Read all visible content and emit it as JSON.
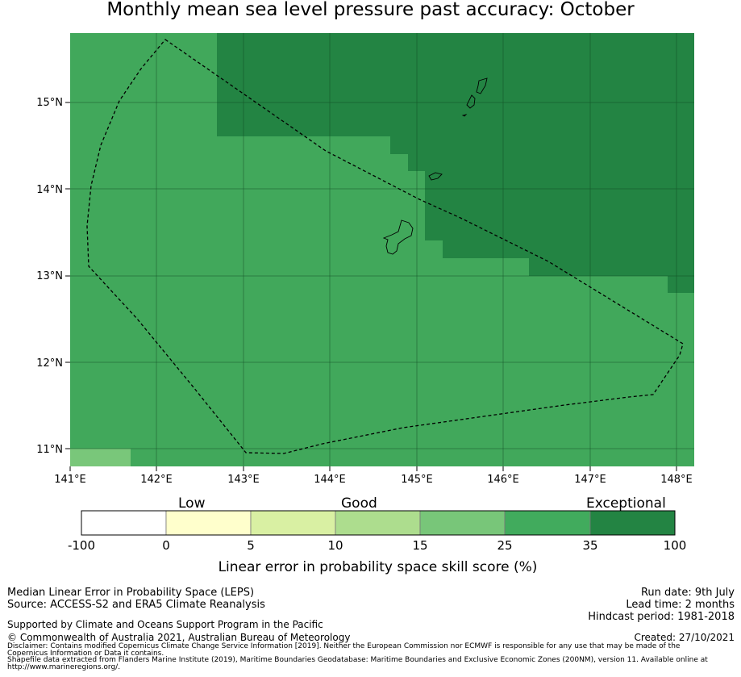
{
  "title": "Monthly mean sea level pressure past accuracy: October",
  "map": {
    "lat_ticks": [
      "15°N",
      "14°N",
      "13°N",
      "12°N",
      "11°N"
    ],
    "lon_ticks": [
      "141°E",
      "142°E",
      "143°E",
      "144°E",
      "145°E",
      "146°E",
      "147°E",
      "148°E"
    ],
    "lon_range": [
      141,
      148.2
    ],
    "lat_range": [
      10.8,
      15.8
    ],
    "colors": {
      "exceptional": "#228844",
      "good_high": "#41a85b",
      "good": "#79c77a"
    }
  },
  "legend": {
    "categories": [
      "Low",
      "Good",
      "Exceptional"
    ],
    "ticks": [
      "-100",
      "0",
      "5",
      "10",
      "15",
      "25",
      "35",
      "100"
    ],
    "colors": [
      "#ffffff",
      "#ffffcc",
      "#d9f0a3",
      "#addd8e",
      "#78c679",
      "#41ab5d",
      "#238443"
    ],
    "label": "Linear error in probability space skill score (%)"
  },
  "footer": {
    "left_line1": "Median Linear Error in Probability Space (LEPS)",
    "left_line2": "Source: ACCESS-S2 and ERA5 Climate Reanalysis",
    "supported": "Supported by Climate and Oceans Support Program in the Pacific",
    "copyright": "© Commonwealth of Australia 2021, Australian Bureau of Meteorology",
    "disclaimer": "Disclaimer: Contains modified Copernicus Climate Change Service Information [2019]. Neither the European Commission nor ECMWF is responsible for any use that may be made of the Copernicus Information or Data it contains.",
    "shapefile": "Shapefile data extracted from Flanders Marine Institute (2019), Maritime Boundaries Geodatabase: Maritime Boundaries and Exclusive Economic Zones (200NM), version 11. Available online at http://www.marineregions.org/.",
    "run_date": "Run date: 9th July",
    "lead_time": "Lead time: 2 months",
    "hindcast": "Hindcast period: 1981-2018",
    "created": "Created: 27/10/2021"
  }
}
